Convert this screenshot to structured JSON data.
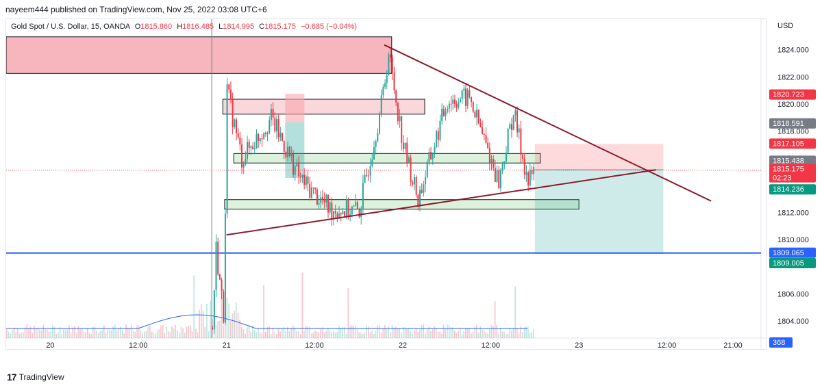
{
  "header": {
    "text": "nayeem444 published on TradingView.com, Nov 25, 2022 03:08 UTC+6"
  },
  "legend": {
    "symbol": "Gold Spot / U.S. Dollar, 15, OANDA",
    "open_label": "O",
    "open": "1815.860",
    "high_label": "H",
    "high": "1816.485",
    "low_label": "L",
    "low": "1814.995",
    "close_label": "C",
    "close": "1815.175",
    "change": "−0.685 (−0.04%)"
  },
  "footer": {
    "logo_text": "TradingView",
    "logo_icon": "tradingview-logo-icon"
  },
  "colors": {
    "up": "#26a69a",
    "down": "#f23645",
    "trend": "#8b1a2b",
    "hline": "#2962ff",
    "volume_ma": "#2962ff",
    "supply": "#f7a6ae",
    "demand": "#d6f0d6"
  },
  "chart_data": {
    "type": "candlestick",
    "currency": "USD",
    "ylim": [
      1802.8,
      1826.2
    ],
    "y_ticks": [
      1804,
      1806,
      1808,
      1810,
      1812,
      1814,
      1816,
      1818,
      1820,
      1822,
      1824
    ],
    "y_tick_labels": [
      "1804.000",
      "1806.000",
      "",
      "1810.000",
      "1812.000",
      "",
      "",
      "1818.000",
      "1820.000",
      "1822.000",
      "1824.000"
    ],
    "x_ticks": [
      "20",
      "12:00",
      "21",
      "12:00",
      "22",
      "12:00",
      "23",
      "12:00",
      "21:00"
    ],
    "ohlc_key_points": [
      {
        "time": "Nov 20 22:00",
        "price": 1803.5
      },
      {
        "time": "Nov 20 22:30",
        "price": 1809.4
      },
      {
        "time": "Nov 20 23:30",
        "price": 1804.5
      },
      {
        "time": "Nov 21 00:00",
        "price": 1821.0
      },
      {
        "time": "Nov 21 02:00",
        "price": 1816.0
      },
      {
        "time": "Nov 21 06:00",
        "price": 1819.0
      },
      {
        "time": "Nov 21 10:00",
        "price": 1814.5
      },
      {
        "time": "Nov 21 14:00",
        "price": 1812.3
      },
      {
        "time": "Nov 21 18:00",
        "price": 1812.2
      },
      {
        "time": "Nov 21 21:00",
        "price": 1820.0
      },
      {
        "time": "Nov 21 22:00",
        "price": 1823.8
      },
      {
        "time": "Nov 22 00:00",
        "price": 1817.0
      },
      {
        "time": "Nov 22 02:00",
        "price": 1813.0
      },
      {
        "time": "Nov 22 06:00",
        "price": 1820.3
      },
      {
        "time": "Nov 22 09:00",
        "price": 1820.5
      },
      {
        "time": "Nov 22 13:00",
        "price": 1814.3
      },
      {
        "time": "Nov 22 15:00",
        "price": 1819.5
      },
      {
        "time": "Nov 22 17:00",
        "price": 1814.2
      },
      {
        "time": "Nov 22 17:45",
        "price": 1815.175
      }
    ],
    "price_badges": [
      {
        "label": "USD",
        "kind": "unit"
      },
      {
        "value": "1820.723",
        "kind": "red"
      },
      {
        "value": "1818.591",
        "kind": "gray"
      },
      {
        "value": "1817.105",
        "kind": "red"
      },
      {
        "value": "1815.438",
        "kind": "gray"
      },
      {
        "value": "1815.175",
        "kind": "red-current",
        "sub": "02:23"
      },
      {
        "value": "1814.236",
        "kind": "green"
      },
      {
        "value": "1809.065",
        "kind": "blue"
      },
      {
        "value": "1809.005",
        "kind": "green"
      },
      {
        "value": "368",
        "kind": "blue-volume"
      }
    ],
    "zones": [
      {
        "name": "supply-top",
        "price_top": 1825.0,
        "price_bottom": 1822.3,
        "from": "Nov 19 18:00",
        "to": "Nov 21 22:30"
      },
      {
        "name": "resistance-box",
        "price_top": 1820.4,
        "price_bottom": 1819.3,
        "from": "Nov 20 23:30",
        "to": "Nov 22 03:00"
      },
      {
        "name": "mid-box",
        "price_top": 1816.4,
        "price_bottom": 1815.7,
        "from": "Nov 21 01:00",
        "to": "Nov 22 18:45"
      },
      {
        "name": "demand-box",
        "price_top": 1813.0,
        "price_bottom": 1812.3,
        "from": "Nov 20 23:45",
        "to": "Nov 23 00:00"
      }
    ],
    "trendlines": [
      {
        "name": "descending",
        "from": {
          "time": "Nov 21 21:30",
          "price": 1824.4
        },
        "to": {
          "time": "Nov 23 18:00",
          "price": 1812.9
        }
      },
      {
        "name": "ascending",
        "from": {
          "time": "Nov 21 00:00",
          "price": 1810.4
        },
        "to": {
          "time": "Nov 23 10:30",
          "price": 1815.2
        }
      }
    ],
    "horizontal_line": {
      "price": 1809.065
    },
    "position_tool": {
      "entry": 1815.2,
      "stop": 1817.105,
      "target": 1809.005,
      "from": "Nov 22 18:00",
      "to": "Nov 23 11:30"
    },
    "volume_last": 368
  }
}
